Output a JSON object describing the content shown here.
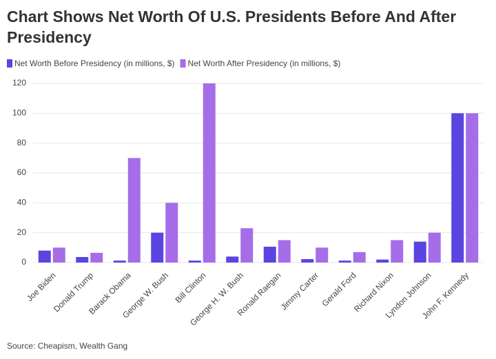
{
  "chart_data": {
    "type": "bar",
    "title": "Chart Shows Net Worth Of U.S. Presidents Before And After Presidency",
    "source": "Source: Cheapism, Wealth Gang",
    "categories": [
      "Joe Biden",
      "Donald Trump",
      "Barack Obama",
      "George W. Bush",
      "Bill Clinton",
      "George H. W. Bush",
      "Ronald Raegan",
      "Jimmy Carter",
      "Gerald Ford",
      "Richard Nixon",
      "Lyndon Johnson",
      "John F. Kennedy"
    ],
    "series": [
      {
        "name": "Net Worth Before Presidency (in millions, $)",
        "color": "#5b45e0",
        "values": [
          8,
          3.7,
          1.3,
          20,
          1.3,
          4,
          10.6,
          2.3,
          1.3,
          2,
          14,
          100
        ]
      },
      {
        "name": "Net Worth After Presidency (in millions, $)",
        "color": "#a66de8",
        "values": [
          10,
          6.5,
          70,
          40,
          120,
          23,
          15,
          10,
          7,
          15,
          20,
          100
        ]
      }
    ],
    "ylim": [
      0,
      120
    ],
    "yticks": [
      0,
      20,
      40,
      60,
      80,
      100,
      120
    ],
    "grid": true,
    "legend": "top-left"
  }
}
